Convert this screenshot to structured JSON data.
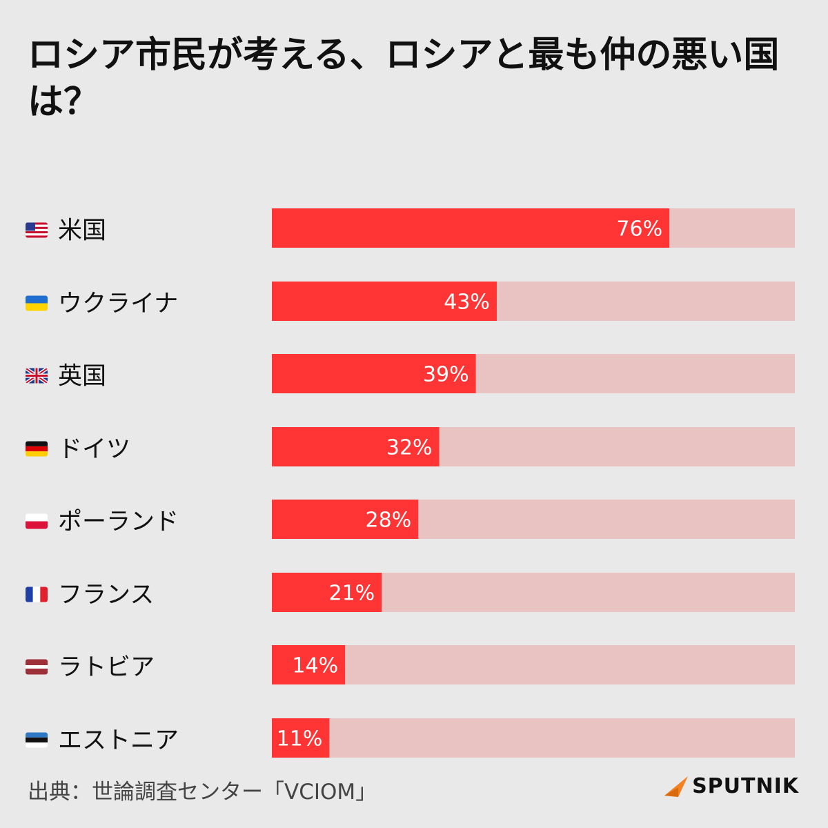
{
  "title": "ロシア市民が考える、ロシアと最も仲の悪い国は？",
  "source": "出典：世論調査センター「VCIOM」",
  "logo": {
    "text": "SPUTNIK",
    "icon": "sputnik-arrow-icon"
  },
  "colors": {
    "bar": "#ff3535",
    "track": "#e9c2c2",
    "background": "#e9e9e9",
    "logo_accent": "#f58220"
  },
  "chart_data": {
    "type": "bar",
    "orientation": "horizontal",
    "title": "ロシア市民が考える、ロシアと最も仲の悪い国は？",
    "xlim": [
      0,
      100
    ],
    "categories": [
      "米国",
      "ウクライナ",
      "英国",
      "ドイツ",
      "ポーランド",
      "フランス",
      "ラトビア",
      "エストニア"
    ],
    "values": [
      76,
      43,
      39,
      32,
      28,
      21,
      14,
      11
    ],
    "value_labels": [
      "76%",
      "43%",
      "39%",
      "32%",
      "28%",
      "21%",
      "14%",
      "11%"
    ],
    "flags": [
      "us-flag-icon",
      "ukraine-flag-icon",
      "uk-flag-icon",
      "germany-flag-icon",
      "poland-flag-icon",
      "france-flag-icon",
      "latvia-flag-icon",
      "estonia-flag-icon"
    ],
    "grid": false,
    "legend": "none"
  }
}
